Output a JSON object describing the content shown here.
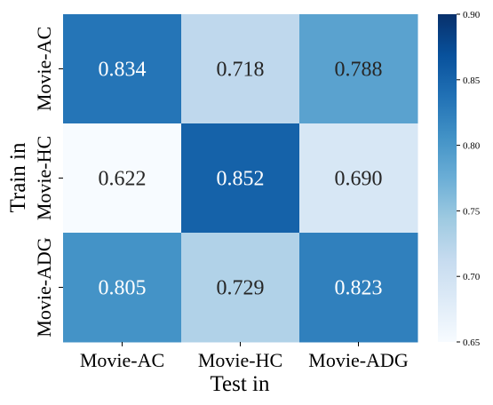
{
  "chart_data": {
    "type": "heatmap",
    "title": "",
    "xlabel": "Test in",
    "ylabel": "Train in",
    "x_categories": [
      "Movie-AC",
      "Movie-HC",
      "Movie-ADG"
    ],
    "y_categories": [
      "Movie-AC",
      "Movie-HC",
      "Movie-ADG"
    ],
    "values": [
      [
        0.834,
        0.718,
        0.788
      ],
      [
        0.622,
        0.852,
        0.69
      ],
      [
        0.805,
        0.729,
        0.823
      ]
    ],
    "cell_labels": [
      [
        "0.834",
        "0.718",
        "0.788"
      ],
      [
        "0.622",
        "0.852",
        "0.690"
      ],
      [
        "0.805",
        "0.729",
        "0.823"
      ]
    ],
    "colorbar": {
      "min": 0.65,
      "max": 0.9,
      "ticks": [
        0.65,
        0.7,
        0.75,
        0.8,
        0.85,
        0.9
      ],
      "tick_labels": [
        "0.65",
        "0.70",
        "0.75",
        "0.80",
        "0.85",
        "0.90"
      ],
      "colormap": "Blues",
      "colors": [
        "#f7fbff",
        "#deebf7",
        "#c6dbef",
        "#9ecae1",
        "#6baed6",
        "#4292c6",
        "#2171b5",
        "#08519c",
        "#08306b"
      ]
    }
  }
}
